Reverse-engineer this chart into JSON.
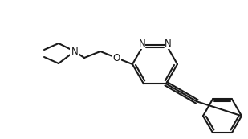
{
  "bg": "#ffffff",
  "lw": 1.5,
  "fontsize": 8.5,
  "bond_color": "#1a1a1a",
  "atoms": {
    "N_label": "N",
    "O_label": "O",
    "N1_label": "N",
    "N2_label": "N"
  }
}
